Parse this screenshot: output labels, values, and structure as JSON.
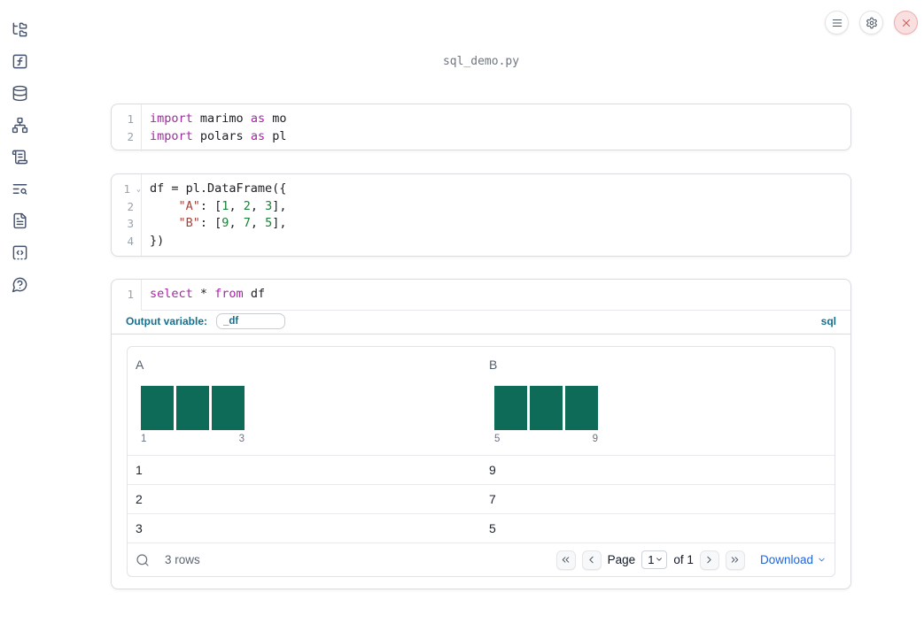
{
  "colors": {
    "kw": "#a626a4",
    "str": "#a5423c",
    "num": "#1a7f37",
    "accent": "#14708e",
    "bar": "#0e6b57",
    "link": "#2264db",
    "icon": "#43506b",
    "close": "#cf5b5b"
  },
  "window": {
    "title": "sql_demo.py"
  },
  "topbar": {
    "buttons": [
      {
        "id": "menu",
        "icon": "menu-icon"
      },
      {
        "id": "settings",
        "icon": "gear-icon"
      },
      {
        "id": "close",
        "icon": "close-icon"
      }
    ]
  },
  "sidebar": {
    "items": [
      {
        "id": "file-explorer",
        "icon": "file-tree-icon"
      },
      {
        "id": "functions",
        "icon": "function-square-icon"
      },
      {
        "id": "data-sources",
        "icon": "database-icon"
      },
      {
        "id": "dependency-graph",
        "icon": "network-icon"
      },
      {
        "id": "logs",
        "icon": "scroll-text-icon"
      },
      {
        "id": "outline",
        "icon": "text-search-icon"
      },
      {
        "id": "documentation",
        "icon": "file-text-icon"
      },
      {
        "id": "snippets",
        "icon": "code-square-icon"
      },
      {
        "id": "help",
        "icon": "help-circle-icon"
      }
    ]
  },
  "cells": [
    {
      "id": "imports",
      "lines": [
        {
          "n": "1",
          "tokens": [
            [
              "kw",
              "import"
            ],
            [
              "pl",
              " marimo "
            ],
            [
              "kw",
              "as"
            ],
            [
              "pl",
              " mo"
            ]
          ]
        },
        {
          "n": "2",
          "tokens": [
            [
              "kw",
              "import"
            ],
            [
              "pl",
              " polars "
            ],
            [
              "kw",
              "as"
            ],
            [
              "pl",
              " pl"
            ]
          ]
        }
      ]
    },
    {
      "id": "df",
      "lines": [
        {
          "n": "1",
          "fold": true,
          "tokens": [
            [
              "pl",
              "df = pl.DataFrame({"
            ]
          ]
        },
        {
          "n": "2",
          "tokens": [
            [
              "pl",
              "    "
            ],
            [
              "str",
              "\"A\""
            ],
            [
              "pl",
              ": ["
            ],
            [
              "num",
              "1"
            ],
            [
              "pl",
              ", "
            ],
            [
              "num",
              "2"
            ],
            [
              "pl",
              ", "
            ],
            [
              "num",
              "3"
            ],
            [
              "pl",
              "],"
            ]
          ]
        },
        {
          "n": "3",
          "tokens": [
            [
              "pl",
              "    "
            ],
            [
              "str",
              "\"B\""
            ],
            [
              "pl",
              ": ["
            ],
            [
              "num",
              "9"
            ],
            [
              "pl",
              ", "
            ],
            [
              "num",
              "7"
            ],
            [
              "pl",
              ", "
            ],
            [
              "num",
              "5"
            ],
            [
              "pl",
              "],"
            ]
          ]
        },
        {
          "n": "4",
          "tokens": [
            [
              "pl",
              "})"
            ]
          ]
        }
      ]
    },
    {
      "id": "sql",
      "lines": [
        {
          "n": "1",
          "tokens": [
            [
              "kw",
              "select"
            ],
            [
              "pl",
              " * "
            ],
            [
              "kw",
              "from"
            ],
            [
              "pl",
              " df"
            ]
          ]
        }
      ]
    }
  ],
  "sql_cell": {
    "output_variable_label": "Output variable:",
    "output_variable_value": "_df",
    "language_badge": "sql"
  },
  "table": {
    "columns": [
      {
        "name": "A",
        "histogram": {
          "bars": 3,
          "min_label": "1",
          "max_label": "3"
        }
      },
      {
        "name": "B",
        "histogram": {
          "bars": 3,
          "min_label": "5",
          "max_label": "9"
        }
      }
    ],
    "rows": [
      [
        "1",
        "9"
      ],
      [
        "2",
        "7"
      ],
      [
        "3",
        "5"
      ]
    ],
    "footer": {
      "row_count": "3 rows",
      "page_label": "Page",
      "page_value": "1",
      "of_label": "of 1",
      "download_label": "Download"
    }
  }
}
